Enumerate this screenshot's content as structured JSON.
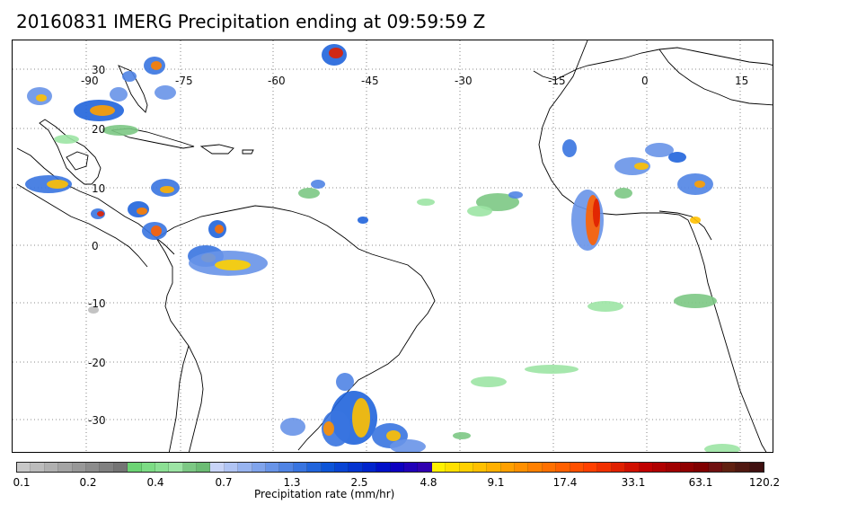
{
  "title": "20160831 IMERG Precipitation ending at 09:59:59 Z",
  "map": {
    "lon_labels": [
      "-90",
      "-75",
      "-60",
      "-45",
      "-30",
      "-15",
      "0",
      "15"
    ],
    "lat_labels": [
      "30",
      "20",
      "10",
      "0",
      "-10",
      "-20",
      "-30"
    ],
    "grid": "dotted",
    "coastline_color": "#000000",
    "background_color": "#ffffff"
  },
  "colorbar": {
    "label": "Precipitation rate (mm/hr)",
    "tick_labels": [
      "0.1",
      "0.2",
      "0.4",
      "0.7",
      "1.3",
      "2.5",
      "4.8",
      "9.1",
      "17.4",
      "33.1",
      "63.1",
      "120.2"
    ],
    "colors": [
      "#c8c8c8",
      "#bcbcbc",
      "#b0b0b0",
      "#a4a4a4",
      "#989898",
      "#8c8c8c",
      "#808080",
      "#747474",
      "#6cd474",
      "#7cdc84",
      "#8ce094",
      "#9ce4a4",
      "#7cc884",
      "#6cbc74",
      "#c8d4f8",
      "#b0c4f4",
      "#98b4f0",
      "#80a4ec",
      "#6894e8",
      "#5084e4",
      "#3874e0",
      "#2064dc",
      "#0c54d8",
      "#0844d4",
      "#0434d0",
      "#0024cc",
      "#0010c8",
      "#0c00c0",
      "#2000b8",
      "#3000b0",
      "#fff000",
      "#ffe000",
      "#ffd000",
      "#ffc000",
      "#ffb000",
      "#ffa000",
      "#ff9000",
      "#ff8000",
      "#ff7000",
      "#ff6000",
      "#ff5000",
      "#ff4000",
      "#f03000",
      "#e02000",
      "#d01000",
      "#c00000",
      "#b00000",
      "#a00000",
      "#900000",
      "#800000",
      "#701010",
      "#602010",
      "#501810",
      "#401010"
    ],
    "scale": "log"
  }
}
